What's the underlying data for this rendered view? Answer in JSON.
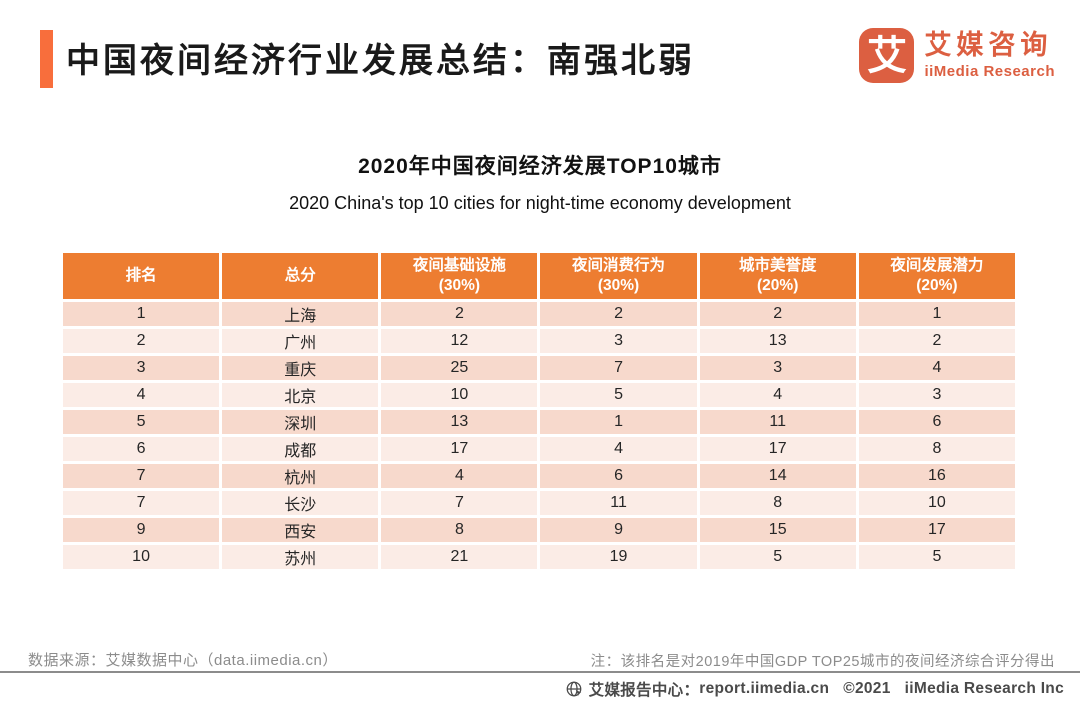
{
  "header": {
    "title": "中国夜间经济行业发展总结：南强北弱"
  },
  "logo": {
    "icon_glyph": "艾",
    "name_cn": "艾媒咨询",
    "name_en": "iiMedia Research"
  },
  "chart_data": {
    "type": "table",
    "title": "2020年中国夜间经济发展TOP10城市",
    "subtitle": "2020 China's top 10 cities for night-time economy development",
    "columns": [
      "排名",
      "总分",
      "夜间基础设施(30%)",
      "夜间消费行为(30%)",
      "城市美誉度(20%)",
      "夜间发展潜力(20%)"
    ],
    "rows": [
      [
        "1",
        "上海",
        "2",
        "2",
        "2",
        "1"
      ],
      [
        "2",
        "广州",
        "12",
        "3",
        "13",
        "2"
      ],
      [
        "3",
        "重庆",
        "25",
        "7",
        "3",
        "4"
      ],
      [
        "4",
        "北京",
        "10",
        "5",
        "4",
        "3"
      ],
      [
        "5",
        "深圳",
        "13",
        "1",
        "11",
        "6"
      ],
      [
        "6",
        "成都",
        "17",
        "4",
        "17",
        "8"
      ],
      [
        "7",
        "杭州",
        "4",
        "6",
        "14",
        "16"
      ],
      [
        "7",
        "长沙",
        "7",
        "11",
        "8",
        "10"
      ],
      [
        "9",
        "西安",
        "8",
        "9",
        "15",
        "17"
      ],
      [
        "10",
        "苏州",
        "21",
        "19",
        "5",
        "5"
      ]
    ]
  },
  "table": {
    "header_lines": [
      [
        "排名",
        ""
      ],
      [
        "总分",
        ""
      ],
      [
        "夜间基础设施",
        "(30%)"
      ],
      [
        "夜间消费行为",
        "(30%)"
      ],
      [
        "城市美誉度",
        "(20%)"
      ],
      [
        "夜间发展潜力",
        "(20%)"
      ]
    ]
  },
  "footer": {
    "source": "数据来源：艾媒数据中心（data.iimedia.cn）",
    "note": "注：该排名是对2019年中国GDP TOP25城市的夜间经济综合评分得出",
    "report_center": "艾媒报告中心：",
    "report_url": "report.iimedia.cn",
    "copyright": "©2021",
    "company": "iiMedia Research Inc"
  },
  "colors": {
    "accent_bar": "#F86E3C",
    "table_header": "#ED7D31",
    "row_dark": "#F7D9CC",
    "row_light": "#FBECE6",
    "logo": "#DC5F41",
    "gray_text": "#8C8C8C",
    "footer_text": "#4A4A4A"
  }
}
